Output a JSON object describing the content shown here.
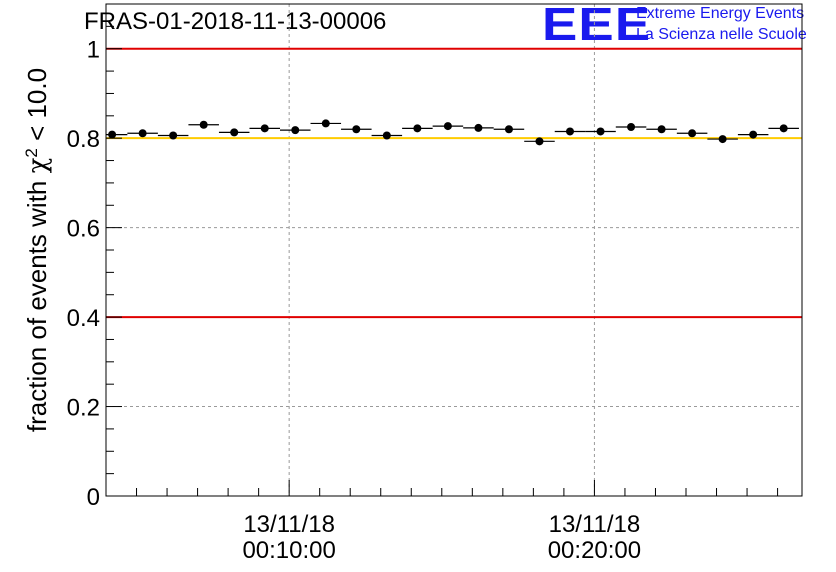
{
  "title": "FRAS-01-2018-11-13-00006",
  "logo": {
    "mark": "EEE",
    "line1": "Extreme Energy Events",
    "line2": "La Scienza nelle Scuole"
  },
  "colors": {
    "threshold_red": "#e00000",
    "reference_yellow": "#ffcc00",
    "logo_blue": "#1a1aee",
    "marker": "#000000",
    "grid": "#9a9a9a"
  },
  "chart_data": {
    "type": "scatter",
    "title": "FRAS-01-2018-11-13-00006",
    "ylabel": "fraction of events with χ² < 10.0",
    "ylabel_parts": {
      "prefix": "fraction of events with ",
      "symbol": "χ",
      "superscript": "2",
      "suffix": " < 10.0"
    },
    "xlabel": "",
    "xlim_minutes": [
      0,
      22.8
    ],
    "ylim": [
      0,
      1.1
    ],
    "yticks": [
      0,
      0.2,
      0.4,
      0.6,
      0.8,
      1
    ],
    "ytick_labels": [
      "0",
      "0.2",
      "0.4",
      "0.6",
      "0.8",
      "1"
    ],
    "xticks_minutes": [
      6,
      16
    ],
    "xtick_labels": [
      {
        "date": "13/11/18",
        "time": "00:10:00"
      },
      {
        "date": "13/11/18",
        "time": "00:20:00"
      }
    ],
    "grid": true,
    "bin_width_minutes": 1.0,
    "x_minutes": [
      0.2,
      1.2,
      2.2,
      3.2,
      4.2,
      5.2,
      6.2,
      7.2,
      8.2,
      9.2,
      10.2,
      11.2,
      12.2,
      13.2,
      14.2,
      15.2,
      16.2,
      17.2,
      18.2,
      19.2,
      20.2,
      21.2,
      22.2
    ],
    "values": [
      0.808,
      0.811,
      0.806,
      0.83,
      0.813,
      0.822,
      0.818,
      0.833,
      0.82,
      0.806,
      0.822,
      0.827,
      0.823,
      0.82,
      0.793,
      0.815,
      0.815,
      0.825,
      0.82,
      0.811,
      0.798,
      0.808,
      0.822
    ],
    "reference_lines": [
      {
        "y": 1.0,
        "color": "#e00000"
      },
      {
        "y": 0.4,
        "color": "#e00000"
      },
      {
        "y": 0.8,
        "color": "#ffcc00"
      }
    ]
  }
}
